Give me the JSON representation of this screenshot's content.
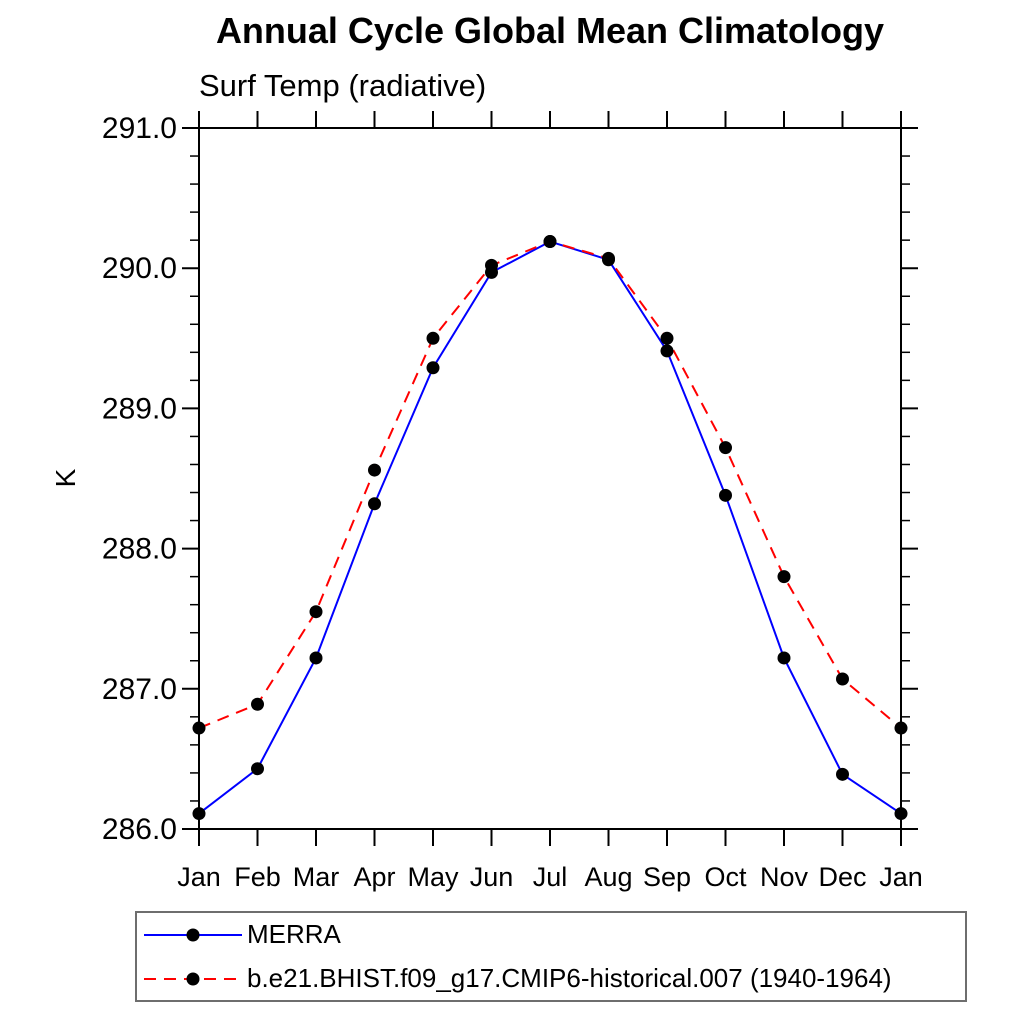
{
  "chart_data": {
    "type": "line",
    "title": "Annual Cycle Global Mean Climatology",
    "subtitle": "Surf Temp (radiative)",
    "ylabel": "K",
    "x_categories": [
      "Jan",
      "Feb",
      "Mar",
      "Apr",
      "May",
      "Jun",
      "Jul",
      "Aug",
      "Sep",
      "Oct",
      "Nov",
      "Dec",
      "Jan"
    ],
    "ylim": [
      286.0,
      291.0
    ],
    "y_major_tick_labels": [
      "286.0",
      "287.0",
      "288.0",
      "289.0",
      "290.0",
      "291.0"
    ],
    "y_minor_step": 0.2,
    "grid": false,
    "legend_position": "bottom-left-box",
    "series": [
      {
        "name": "MERRA",
        "color": "#0000ff",
        "style": "solid",
        "marker": "filled-circle",
        "marker_color": "#000000",
        "values": [
          286.11,
          286.43,
          287.22,
          288.32,
          289.29,
          289.97,
          290.19,
          290.06,
          289.41,
          288.38,
          287.22,
          286.39,
          286.11
        ]
      },
      {
        "name": "b.e21.BHIST.f09_g17.CMIP6-historical.007 (1940-1964)",
        "color": "#ff0000",
        "style": "dashed",
        "marker": "filled-circle",
        "marker_color": "#000000",
        "values": [
          286.72,
          286.89,
          287.55,
          288.56,
          289.5,
          290.02,
          290.19,
          290.07,
          289.5,
          288.72,
          287.8,
          287.07,
          286.72
        ]
      }
    ]
  }
}
